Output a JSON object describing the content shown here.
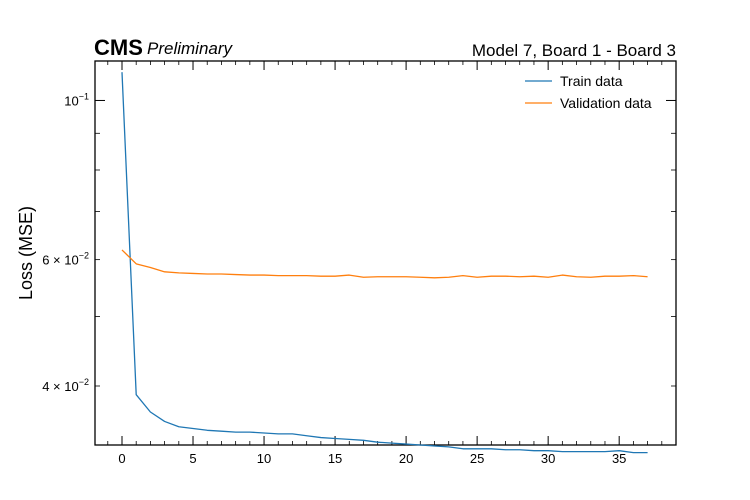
{
  "chart_data": {
    "type": "line",
    "experiment_label": "CMS",
    "status_label": "Preliminary",
    "title": "Model 7, Board 1 - Board 3",
    "xlabel": "",
    "ylabel": "Loss (MSE)",
    "yscale": "log",
    "xlim": [
      -1.9,
      39.0
    ],
    "ylim": [
      0.0331,
      0.1135
    ],
    "x_ticks": [
      0,
      5,
      10,
      15,
      20,
      25,
      30,
      35
    ],
    "y_major_ticks": [
      {
        "value": 0.1,
        "base": "10",
        "exp": "−1"
      }
    ],
    "y_minor_labeled_ticks": [
      {
        "value": 0.06,
        "mant": "6",
        "base": "10",
        "exp": "−2"
      },
      {
        "value": 0.04,
        "mant": "4",
        "base": "10",
        "exp": "−2"
      }
    ],
    "y_minor_ticks": [
      0.04,
      0.05,
      0.06,
      0.07,
      0.08,
      0.09
    ],
    "legend_position": "top-right",
    "x": [
      0,
      1,
      2,
      3,
      4,
      5,
      6,
      7,
      8,
      9,
      10,
      11,
      12,
      13,
      14,
      15,
      16,
      17,
      18,
      19,
      20,
      21,
      22,
      23,
      24,
      25,
      26,
      27,
      28,
      29,
      30,
      31,
      32,
      33,
      34,
      35,
      36,
      37
    ],
    "series": [
      {
        "name": "Train data",
        "color": "#1f77b4",
        "values": [
          0.1095,
          0.0389,
          0.0368,
          0.0357,
          0.0351,
          0.0349,
          0.0347,
          0.0346,
          0.0345,
          0.0345,
          0.0344,
          0.0343,
          0.0343,
          0.0341,
          0.0339,
          0.0338,
          0.0337,
          0.0336,
          0.0334,
          0.0333,
          0.0332,
          0.0331,
          0.033,
          0.0329,
          0.0327,
          0.0327,
          0.0327,
          0.0326,
          0.0326,
          0.0325,
          0.0325,
          0.0324,
          0.0324,
          0.0324,
          0.0324,
          0.0325,
          0.0323,
          0.0323
        ]
      },
      {
        "name": "Validation data",
        "color": "#ff7f0e",
        "values": [
          0.0619,
          0.0592,
          0.0585,
          0.0577,
          0.0575,
          0.0574,
          0.0573,
          0.0573,
          0.0572,
          0.0571,
          0.0571,
          0.057,
          0.057,
          0.057,
          0.0569,
          0.0569,
          0.0571,
          0.0567,
          0.0568,
          0.0568,
          0.0568,
          0.0567,
          0.0566,
          0.0567,
          0.057,
          0.0567,
          0.0569,
          0.0569,
          0.0568,
          0.0569,
          0.0567,
          0.0571,
          0.0568,
          0.0567,
          0.0569,
          0.0569,
          0.057,
          0.0568
        ]
      }
    ]
  }
}
